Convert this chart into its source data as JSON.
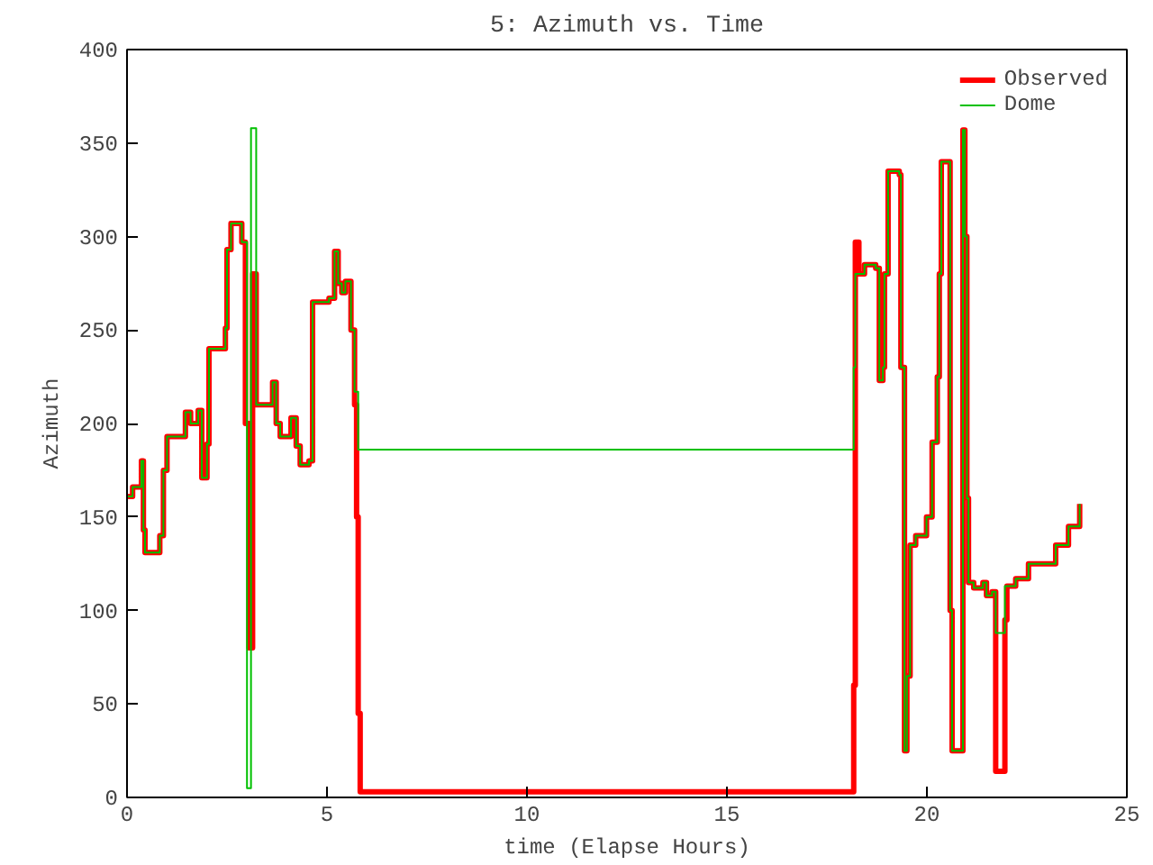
{
  "chart_data": {
    "type": "step",
    "title": "5: Azimuth vs. Time",
    "xlabel": "time (Elapse Hours)",
    "ylabel": "Azimuth",
    "xlim": [
      0,
      25
    ],
    "ylim": [
      0,
      400
    ],
    "xticks": [
      0,
      5,
      10,
      15,
      20,
      25
    ],
    "yticks": [
      0,
      50,
      100,
      150,
      200,
      250,
      300,
      350,
      400
    ],
    "grid": false,
    "legend": "top right",
    "series": [
      {
        "name": "Observed",
        "color": "#ff0000",
        "x": [
          0,
          0.14,
          0.36,
          0.41,
          0.45,
          0.82,
          0.91,
          1.0,
          1.46,
          1.59,
          1.78,
          1.87,
          2.0,
          2.05,
          2.46,
          2.5,
          2.6,
          2.87,
          2.96,
          3.05,
          3.14,
          3.23,
          3.64,
          3.73,
          3.83,
          4.1,
          4.23,
          4.33,
          4.55,
          4.64,
          5.05,
          5.19,
          5.28,
          5.37,
          5.46,
          5.6,
          5.69,
          5.74,
          5.78,
          5.83,
          18.12,
          18.17,
          18.21,
          18.3,
          18.44,
          18.72,
          18.81,
          18.9,
          18.94,
          19.03,
          19.31,
          19.35,
          19.44,
          19.5,
          19.58,
          19.72,
          19.99,
          20.13,
          20.26,
          20.31,
          20.36,
          20.54,
          20.58,
          20.63,
          20.86,
          20.9,
          20.95,
          21.0,
          21.04,
          21.17,
          21.4,
          21.49,
          21.63,
          21.72,
          21.9,
          21.95,
          22.0,
          22.22,
          22.54,
          23.22,
          23.54,
          23.82
        ],
        "values": [
          161,
          166,
          180,
          143,
          131,
          140,
          175,
          193,
          206,
          200,
          207,
          171,
          189,
          240,
          251,
          293,
          307,
          297,
          200,
          80,
          280,
          210,
          222,
          200,
          193,
          203,
          188,
          178,
          180,
          265,
          267,
          292,
          275,
          270,
          276,
          250,
          210,
          150,
          45,
          3,
          3,
          60,
          297,
          280,
          285,
          283,
          223,
          230,
          280,
          335,
          333,
          230,
          25,
          65,
          135,
          140,
          150,
          190,
          225,
          280,
          340,
          340,
          100,
          25,
          25,
          357,
          300,
          160,
          115,
          112,
          115,
          108,
          110,
          14,
          14,
          95,
          113,
          117,
          125,
          135,
          145,
          157
        ]
      },
      {
        "name": "Dome",
        "color": "#00c000",
        "x": [
          0,
          0.14,
          0.36,
          0.41,
          0.45,
          0.82,
          0.91,
          1.0,
          1.46,
          1.59,
          1.78,
          1.87,
          2.0,
          2.05,
          2.46,
          2.5,
          2.6,
          2.87,
          3.0,
          3.1,
          3.23,
          3.64,
          3.73,
          3.83,
          4.1,
          4.23,
          4.33,
          4.55,
          4.64,
          5.05,
          5.19,
          5.28,
          5.37,
          5.46,
          5.6,
          5.69,
          5.78,
          18.12,
          18.17,
          18.21,
          18.44,
          18.72,
          18.81,
          18.9,
          18.94,
          19.03,
          19.31,
          19.35,
          19.44,
          19.5,
          19.58,
          19.72,
          19.99,
          20.13,
          20.26,
          20.31,
          20.36,
          20.54,
          20.58,
          20.63,
          20.86,
          20.9,
          20.95,
          21.0,
          21.04,
          21.17,
          21.4,
          21.49,
          21.63,
          21.72,
          21.9,
          21.95,
          22.22,
          22.54,
          23.22,
          23.54,
          23.82
        ],
        "values": [
          161,
          166,
          180,
          143,
          131,
          140,
          175,
          193,
          206,
          200,
          207,
          171,
          189,
          240,
          251,
          293,
          307,
          297,
          5,
          358,
          210,
          222,
          200,
          193,
          203,
          188,
          178,
          180,
          265,
          267,
          292,
          275,
          270,
          276,
          250,
          217,
          186,
          186,
          230,
          280,
          285,
          283,
          223,
          230,
          280,
          335,
          333,
          230,
          25,
          65,
          135,
          140,
          150,
          190,
          225,
          280,
          340,
          340,
          100,
          25,
          25,
          357,
          300,
          160,
          115,
          112,
          115,
          108,
          110,
          88,
          88,
          113,
          117,
          125,
          135,
          145,
          157
        ]
      }
    ]
  }
}
